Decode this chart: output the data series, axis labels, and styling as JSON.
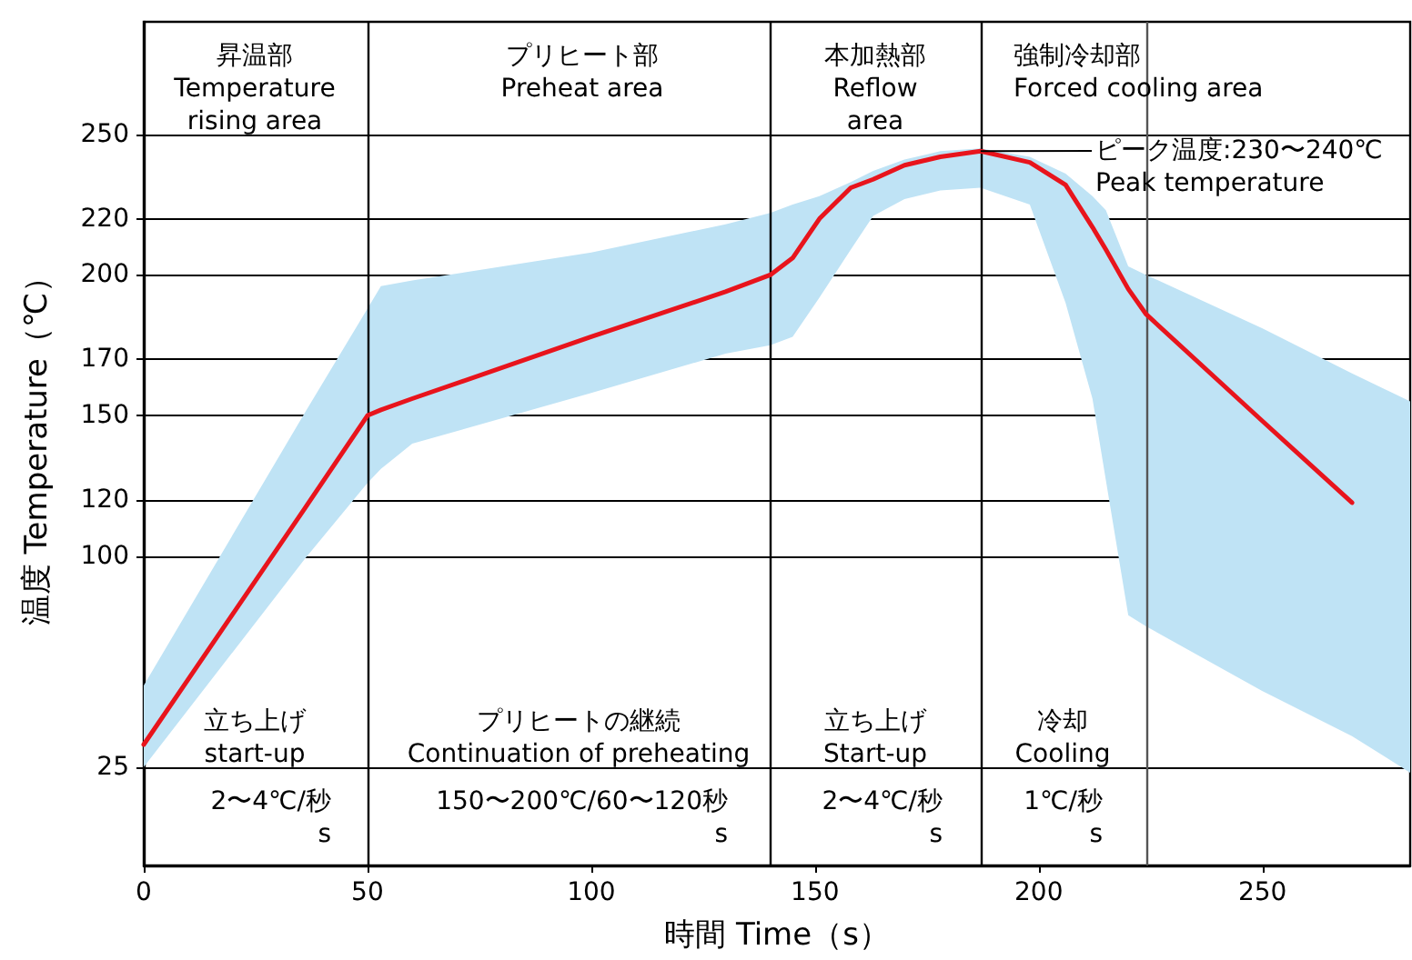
{
  "chart_data": {
    "type": "line",
    "xlabel": "時間 Time（s）",
    "ylabel": "温度 Temperature（℃）",
    "xlim": [
      0,
      283
    ],
    "xticks": [
      0,
      50,
      100,
      150,
      200,
      250
    ],
    "ylim": [
      -10,
      290
    ],
    "yticks": [
      25,
      100,
      120,
      150,
      170,
      200,
      220,
      250
    ],
    "grid": "y",
    "marker": "none",
    "line_style": "solid",
    "series": [
      {
        "color": "#e8141c",
        "x": [
          0,
          36,
          50,
          53,
          60,
          100,
          130,
          140,
          145,
          151,
          158,
          163,
          170,
          178,
          187,
          198,
          206,
          212,
          215,
          220,
          224,
          250,
          270,
          283
        ],
        "values": [
          33,
          117,
          150,
          152,
          156,
          178,
          194,
          200,
          206,
          220,
          231,
          234,
          239,
          242,
          244,
          240,
          232,
          217,
          209,
          195,
          186,
          148,
          119,
          null
        ],
        "lower": [
          25,
          99,
          126,
          131,
          140,
          158,
          172,
          175,
          178,
          192,
          209,
          221,
          227,
          230,
          231,
          225,
          190,
          156,
          127,
          79,
          75,
          52,
          36,
          23
        ],
        "upper": [
          54,
          151,
          188,
          196,
          198,
          208,
          218,
          222,
          225,
          228,
          233,
          237,
          241,
          244,
          245,
          242,
          236,
          228,
          223,
          203,
          200,
          181,
          165,
          155
        ]
      }
    ],
    "ref_lines": [
      {
        "axis": "x",
        "value": 50,
        "color": "#000000"
      },
      {
        "axis": "x",
        "value": 140,
        "color": "#000000"
      },
      {
        "axis": "x",
        "value": 187,
        "color": "#000000"
      },
      {
        "axis": "x",
        "value": 224,
        "color": "#555555"
      }
    ],
    "annotations": [
      "昇温部\nTemperature\nrising area",
      "プリヒート部\nPreheat area",
      "本加熱部\nReflow\narea",
      "強制冷却部\nForced cooling area",
      {
        "text": "ピーク温度:230〜240℃\nPeak temperature",
        "x": 187,
        "y": 244
      },
      "立ち上げ\nstart-up",
      "2〜4℃/秒\ns",
      "プリヒートの継続\nContinuation of preheating",
      "150〜200℃/60〜120秒\ns",
      "立ち上げ\nStart-up",
      "2〜4℃/秒\ns",
      "冷却\nCooling",
      "1℃/秒\ns"
    ]
  }
}
